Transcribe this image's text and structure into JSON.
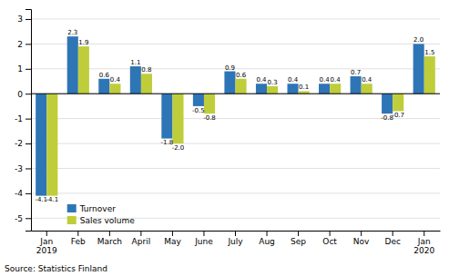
{
  "chart_data": {
    "type": "bar",
    "categories": [
      "Jan\n2019",
      "Feb",
      "March",
      "April",
      "May",
      "June",
      "July",
      "Aug",
      "Sep",
      "Oct",
      "Nov",
      "Dec",
      "Jan\n2020"
    ],
    "series": [
      {
        "name": "Turnover",
        "color": "#2E75B6",
        "values": [
          -4.1,
          2.3,
          0.6,
          1.1,
          -1.8,
          -0.5,
          0.9,
          0.4,
          0.4,
          0.4,
          0.7,
          -0.8,
          2.0
        ],
        "value_labels": [
          "-4.1",
          "2.3",
          "0.6",
          "1.1",
          "-1.8",
          "-0.5",
          "0.9",
          "0.4",
          "0.4",
          "0.4",
          "0.7",
          "-0.8",
          "2.0"
        ]
      },
      {
        "name": "Sales volume",
        "color": "#BFCD3A",
        "values": [
          -4.1,
          1.9,
          0.4,
          0.8,
          -2.0,
          -0.8,
          0.6,
          0.3,
          0.1,
          0.4,
          0.4,
          -0.7,
          1.5
        ],
        "value_labels": [
          "-4.1",
          "1.9",
          "0.4",
          "0.8",
          "-2.0",
          "-0.8",
          "0.6",
          "0.3",
          "0.1",
          "0.4",
          "0.4",
          "-0.7",
          "1.5"
        ]
      }
    ],
    "ylim": [
      -5.5,
      3.4
    ],
    "yticks": [
      -5,
      -4,
      -3,
      -2,
      -1,
      0,
      1,
      2,
      3
    ],
    "grid": true,
    "legend": "lower left",
    "data_labels": true,
    "annotations": [
      "Source: Statistics Finland"
    ]
  }
}
